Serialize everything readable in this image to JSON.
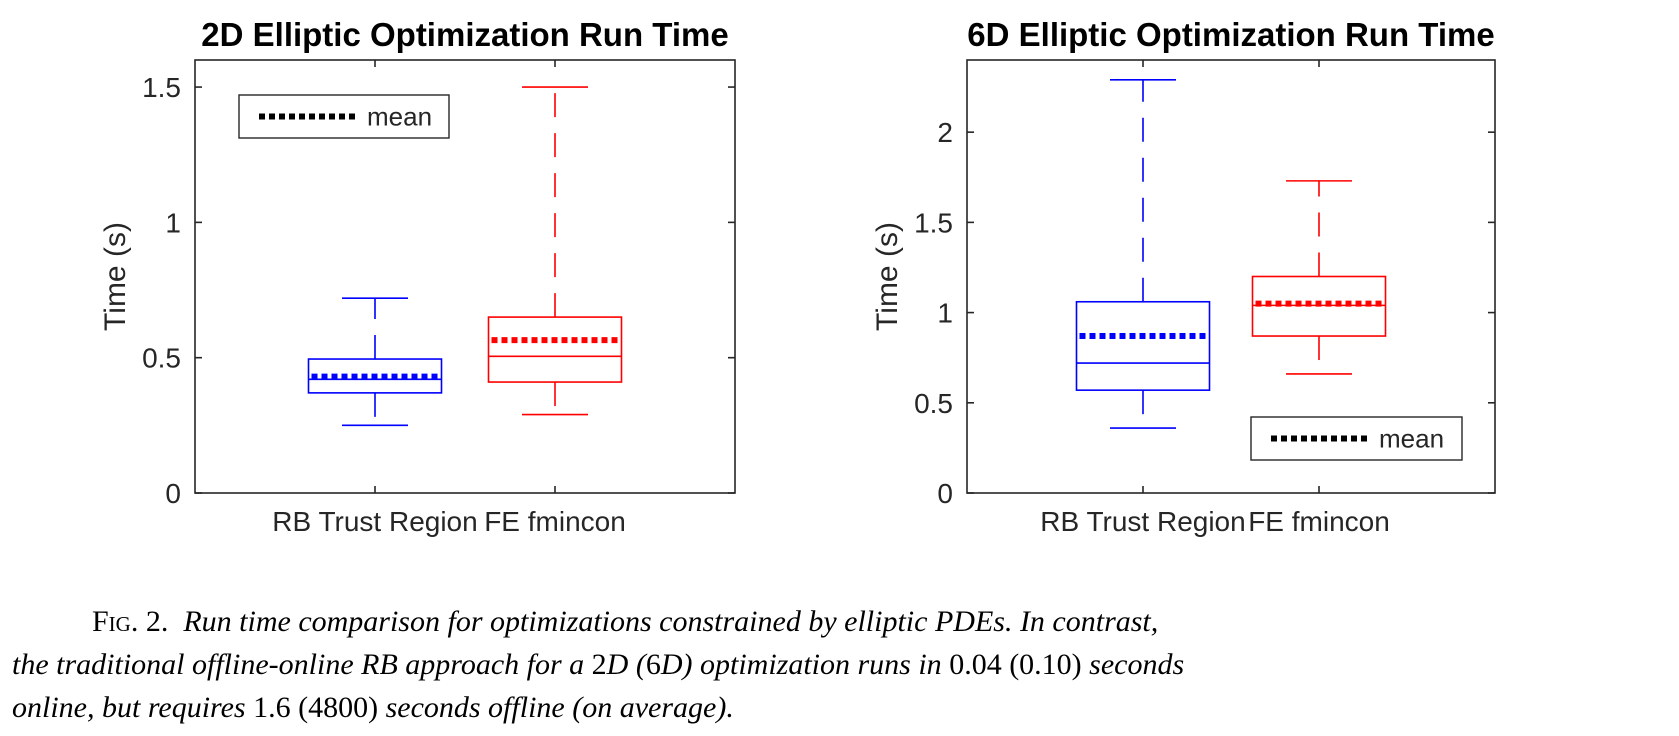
{
  "chart_data": [
    {
      "type": "box",
      "title": "2D Elliptic Optimization Run Time",
      "xlabel": "",
      "ylabel": "Time (s)",
      "ylim": [
        0,
        1.6
      ],
      "yticks": [
        "0",
        "0.5",
        "1",
        "1.5"
      ],
      "categories": [
        "RB Trust Region",
        "FE fmincon"
      ],
      "series": [
        {
          "color": "#0000ff",
          "whisker_low": 0.25,
          "q1": 0.37,
          "median": 0.42,
          "q3": 0.495,
          "whisker_high": 0.72,
          "mean": 0.43
        },
        {
          "color": "#ff0000",
          "whisker_low": 0.29,
          "q1": 0.41,
          "median": 0.505,
          "q3": 0.65,
          "whisker_high": 1.5,
          "mean": 0.565
        }
      ],
      "legend": {
        "label": "mean",
        "position": "top-left"
      },
      "grid": false
    },
    {
      "type": "box",
      "title": "6D Elliptic Optimization Run Time",
      "xlabel": "",
      "ylabel": "Time (s)",
      "ylim": [
        0,
        2.4
      ],
      "yticks": [
        "0",
        "0.5",
        "1",
        "1.5",
        "2"
      ],
      "categories": [
        "RB Trust Region",
        "FE fmincon"
      ],
      "series": [
        {
          "color": "#0000ff",
          "whisker_low": 0.36,
          "q1": 0.57,
          "median": 0.72,
          "q3": 1.06,
          "whisker_high": 2.29,
          "mean": 0.87
        },
        {
          "color": "#ff0000",
          "whisker_low": 0.66,
          "q1": 0.87,
          "median": 1.04,
          "q3": 1.2,
          "whisker_high": 1.73,
          "mean": 1.05
        }
      ],
      "legend": {
        "label": "mean",
        "position": "bottom-right"
      },
      "grid": false
    }
  ],
  "caption": {
    "label": "Fig. 2.",
    "line1": "Run time comparison for optimizations constrained by elliptic PDEs.  In contrast,",
    "line2": {
      "a": "the traditional offline-online RB approach for a ",
      "b": "2",
      "c": "D (",
      "d": "6",
      "e": "D) optimization runs in ",
      "f": "0.04 (0.10)",
      "g": " seconds"
    },
    "line3": {
      "a": "online, but requires ",
      "b": "1.6 (4800)",
      "c": " seconds offline (on average)."
    }
  }
}
